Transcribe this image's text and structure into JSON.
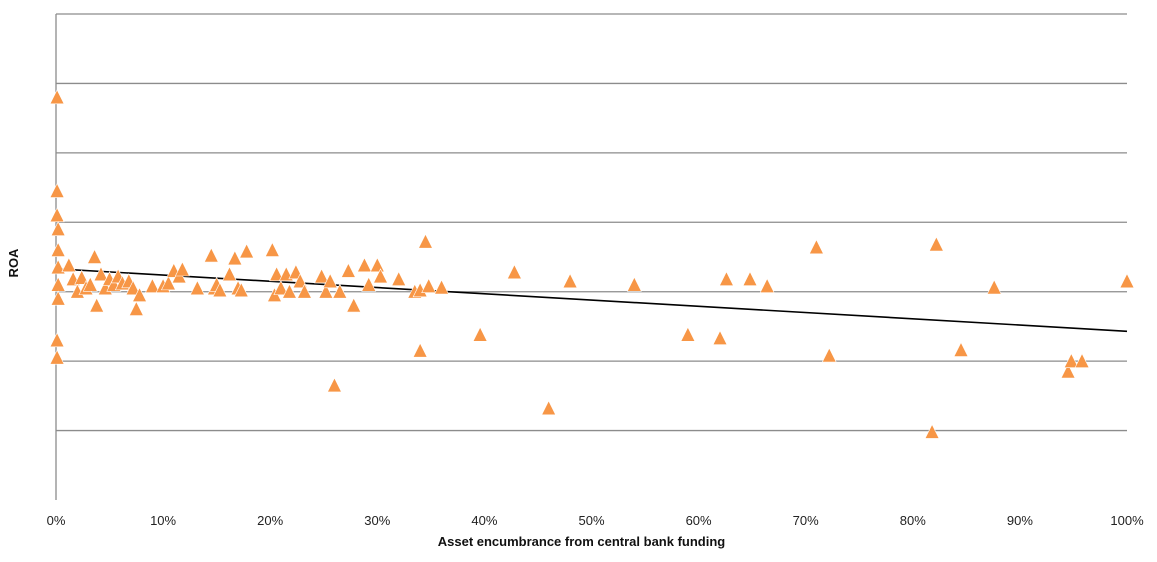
{
  "chart_data": {
    "type": "scatter",
    "title": "",
    "xlabel": "Asset encumbrance from central bank funding",
    "ylabel": "ROA",
    "x_unit": "percent",
    "xlim": [
      0,
      100
    ],
    "x_ticks": [
      "0%",
      "10%",
      "20%",
      "30%",
      "40%",
      "50%",
      "60%",
      "70%",
      "80%",
      "90%",
      "100%"
    ],
    "y_tick_labels_shown": false,
    "ylim": [
      -3,
      4
    ],
    "y_gridlines": [
      -2,
      -1,
      0,
      1,
      2,
      3,
      4
    ],
    "grid": true,
    "legend": "none",
    "marker": {
      "shape": "triangle",
      "color": "#F79646"
    },
    "trendline": {
      "color": "#000000",
      "points": [
        {
          "x": 0,
          "y": 0.33
        },
        {
          "x": 100,
          "y": -0.57
        }
      ]
    },
    "series": [
      {
        "points": [
          {
            "x": 0.1,
            "y": 2.8
          },
          {
            "x": 0.1,
            "y": 1.45
          },
          {
            "x": 0.1,
            "y": 1.1
          },
          {
            "x": 0.2,
            "y": 0.9
          },
          {
            "x": 0.2,
            "y": 0.6
          },
          {
            "x": 0.2,
            "y": 0.35
          },
          {
            "x": 0.2,
            "y": 0.1
          },
          {
            "x": 0.2,
            "y": -0.1
          },
          {
            "x": 0.1,
            "y": -0.7
          },
          {
            "x": 0.1,
            "y": -0.95
          },
          {
            "x": 1.2,
            "y": 0.38
          },
          {
            "x": 1.6,
            "y": 0.18
          },
          {
            "x": 2.0,
            "y": 0.0
          },
          {
            "x": 2.4,
            "y": 0.2
          },
          {
            "x": 2.8,
            "y": 0.05
          },
          {
            "x": 3.2,
            "y": 0.1
          },
          {
            "x": 3.6,
            "y": 0.5
          },
          {
            "x": 3.8,
            "y": -0.2
          },
          {
            "x": 4.2,
            "y": 0.25
          },
          {
            "x": 4.6,
            "y": 0.05
          },
          {
            "x": 5.0,
            "y": 0.18
          },
          {
            "x": 5.4,
            "y": 0.1
          },
          {
            "x": 5.8,
            "y": 0.22
          },
          {
            "x": 6.2,
            "y": 0.12
          },
          {
            "x": 6.8,
            "y": 0.15
          },
          {
            "x": 7.2,
            "y": 0.05
          },
          {
            "x": 7.5,
            "y": -0.25
          },
          {
            "x": 7.8,
            "y": -0.05
          },
          {
            "x": 9.0,
            "y": 0.08
          },
          {
            "x": 10.0,
            "y": 0.08
          },
          {
            "x": 10.5,
            "y": 0.12
          },
          {
            "x": 11.0,
            "y": 0.3
          },
          {
            "x": 11.5,
            "y": 0.22
          },
          {
            "x": 11.8,
            "y": 0.32
          },
          {
            "x": 13.2,
            "y": 0.05
          },
          {
            "x": 14.5,
            "y": 0.52
          },
          {
            "x": 14.8,
            "y": 0.05
          },
          {
            "x": 15.0,
            "y": 0.1
          },
          {
            "x": 15.3,
            "y": 0.02
          },
          {
            "x": 16.2,
            "y": 0.25
          },
          {
            "x": 16.7,
            "y": 0.48
          },
          {
            "x": 17.0,
            "y": 0.05
          },
          {
            "x": 17.3,
            "y": 0.02
          },
          {
            "x": 17.8,
            "y": 0.58
          },
          {
            "x": 20.2,
            "y": 0.6
          },
          {
            "x": 20.6,
            "y": 0.25
          },
          {
            "x": 20.4,
            "y": -0.05
          },
          {
            "x": 21.0,
            "y": 0.05
          },
          {
            "x": 21.5,
            "y": 0.25
          },
          {
            "x": 21.8,
            "y": 0.0
          },
          {
            "x": 22.4,
            "y": 0.28
          },
          {
            "x": 22.8,
            "y": 0.15
          },
          {
            "x": 23.2,
            "y": 0.0
          },
          {
            "x": 24.8,
            "y": 0.22
          },
          {
            "x": 25.2,
            "y": 0.0
          },
          {
            "x": 25.6,
            "y": 0.15
          },
          {
            "x": 26.0,
            "y": -1.35
          },
          {
            "x": 26.5,
            "y": 0.0
          },
          {
            "x": 27.3,
            "y": 0.3
          },
          {
            "x": 27.8,
            "y": -0.2
          },
          {
            "x": 28.8,
            "y": 0.38
          },
          {
            "x": 29.2,
            "y": 0.1
          },
          {
            "x": 30.0,
            "y": 0.38
          },
          {
            "x": 30.3,
            "y": 0.22
          },
          {
            "x": 32.0,
            "y": 0.18
          },
          {
            "x": 33.5,
            "y": 0.0
          },
          {
            "x": 34.0,
            "y": 0.02
          },
          {
            "x": 34.0,
            "y": -0.85
          },
          {
            "x": 34.5,
            "y": 0.72
          },
          {
            "x": 34.8,
            "y": 0.08
          },
          {
            "x": 36.0,
            "y": 0.06
          },
          {
            "x": 39.6,
            "y": -0.62
          },
          {
            "x": 42.8,
            "y": 0.28
          },
          {
            "x": 46.0,
            "y": -1.68
          },
          {
            "x": 48.0,
            "y": 0.15
          },
          {
            "x": 54.0,
            "y": 0.1
          },
          {
            "x": 59.0,
            "y": -0.62
          },
          {
            "x": 62.0,
            "y": -0.67
          },
          {
            "x": 62.6,
            "y": 0.18
          },
          {
            "x": 64.8,
            "y": 0.18
          },
          {
            "x": 66.4,
            "y": 0.08
          },
          {
            "x": 71.0,
            "y": 0.64
          },
          {
            "x": 72.2,
            "y": -0.92
          },
          {
            "x": 81.8,
            "y": -2.02
          },
          {
            "x": 82.2,
            "y": 0.68
          },
          {
            "x": 84.5,
            "y": -0.84
          },
          {
            "x": 87.6,
            "y": 0.06
          },
          {
            "x": 94.5,
            "y": -1.15
          },
          {
            "x": 94.8,
            "y": -1.0
          },
          {
            "x": 95.8,
            "y": -1.0
          },
          {
            "x": 100.0,
            "y": 0.15
          }
        ]
      }
    ]
  }
}
